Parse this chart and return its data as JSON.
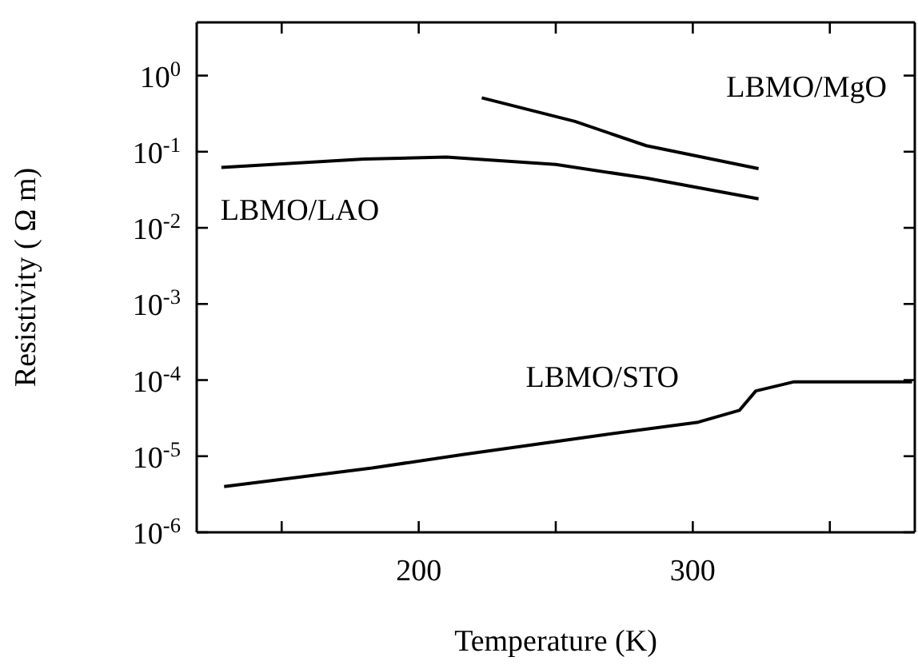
{
  "chart_data": {
    "type": "line",
    "xlabel": "Temperature  (K)",
    "ylabel": "Resistivity  ( Ω m)",
    "log": true,
    "xlim": [
      119,
      381
    ],
    "xticks": [
      {
        "value": 150,
        "label": null
      },
      200,
      {
        "value": 250,
        "label": null
      },
      300,
      {
        "value": 350,
        "label": null
      }
    ],
    "ylim": [
      1e-06,
      5
    ],
    "yticks": [
      {
        "value": 1,
        "label": "10$^{0}$"
      },
      {
        "value": 0.1,
        "label": "10$^{-1}$"
      },
      {
        "value": 0.01,
        "label": "10$^{-2}$"
      },
      {
        "value": 0.001,
        "label": "10$^{-3}$"
      },
      {
        "value": 0.0001,
        "label": "10$^{-4}$"
      },
      {
        "value": 1e-05,
        "label": "10$^{-5}$"
      },
      {
        "value": 1e-06,
        "label": "10$^{-6}$"
      }
    ],
    "grid": false,
    "marker": "none",
    "line_style": "solid",
    "series": [
      {
        "name": "LBMO/MgO",
        "color": "#000000",
        "x": [
          223,
          257,
          283,
          324
        ],
        "values": [
          0.51,
          0.25,
          0.12,
          0.06
        ]
      },
      {
        "name": "LBMO/LAO",
        "color": "#000000",
        "x": [
          128,
          180,
          210,
          250,
          283,
          324
        ],
        "values": [
          0.062,
          0.08,
          0.085,
          0.068,
          0.045,
          0.024
        ]
      },
      {
        "name": "LBMO/STO",
        "color": "#000000",
        "x": [
          129,
          183,
          216,
          267,
          302,
          317,
          323,
          337,
          380
        ],
        "values": [
          4e-06,
          7e-06,
          1.05e-05,
          1.9e-05,
          2.8e-05,
          4e-05,
          7.2e-05,
          9.5e-05,
          9.5e-05
        ]
      }
    ]
  }
}
